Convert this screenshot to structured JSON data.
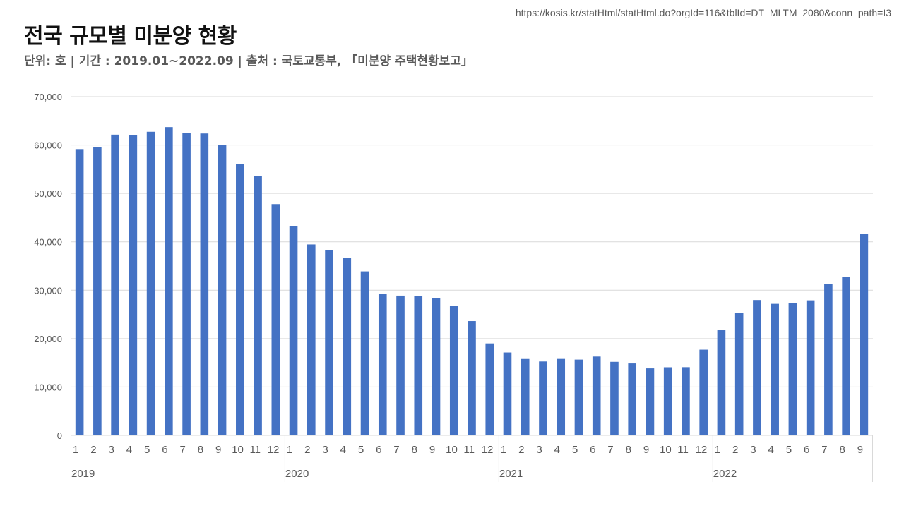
{
  "source_url": "https://kosis.kr/statHtml/statHtml.do?orgId=116&tblId=DT_MLTM_2080&conn_path=I3",
  "title": "전국 규모별 미분양 현황",
  "subtitle": "단위: 호 | 기간 : 2019.01~2022.09 | 출처 : 국토교통부, 「미분양 주택현황보고」",
  "colors": {
    "bar": "#4472C4",
    "grid": "#D9D9D9",
    "tick_text": "#595959"
  },
  "chart_data": {
    "type": "bar",
    "title": "전국 규모별 미분양 현황",
    "ylim": [
      0,
      70000
    ],
    "y_ticks": [
      "0",
      "10,000",
      "20,000",
      "30,000",
      "40,000",
      "50,000",
      "60,000",
      "70,000"
    ],
    "y_tick_values": [
      0,
      10000,
      20000,
      30000,
      40000,
      50000,
      60000,
      70000
    ],
    "grid": true,
    "years": [
      {
        "label": "2019",
        "months": [
          "1",
          "2",
          "3",
          "4",
          "5",
          "6",
          "7",
          "8",
          "9",
          "10",
          "11",
          "12"
        ],
        "values": [
          59162,
          59614,
          62147,
          62041,
          62741,
          63705,
          62529,
          62385,
          60062,
          56098,
          53561,
          47797
        ]
      },
      {
        "label": "2020",
        "months": [
          "1",
          "2",
          "3",
          "4",
          "5",
          "6",
          "7",
          "8",
          "9",
          "10",
          "11",
          "12"
        ],
        "values": [
          43268,
          39456,
          38304,
          36629,
          33894,
          29262,
          28883,
          28831,
          28309,
          26703,
          23620,
          19005
        ]
      },
      {
        "label": "2021",
        "months": [
          "1",
          "2",
          "3",
          "4",
          "5",
          "6",
          "7",
          "8",
          "9",
          "10",
          "11",
          "12"
        ],
        "values": [
          17130,
          15786,
          15270,
          15798,
          15660,
          16289,
          15198,
          14864,
          13842,
          14075,
          14094,
          17710
        ]
      },
      {
        "label": "2022",
        "months": [
          "1",
          "2",
          "3",
          "4",
          "5",
          "6",
          "7",
          "8",
          "9"
        ],
        "values": [
          21727,
          25254,
          27974,
          27180,
          27375,
          27910,
          31284,
          32722,
          41604
        ]
      }
    ]
  }
}
